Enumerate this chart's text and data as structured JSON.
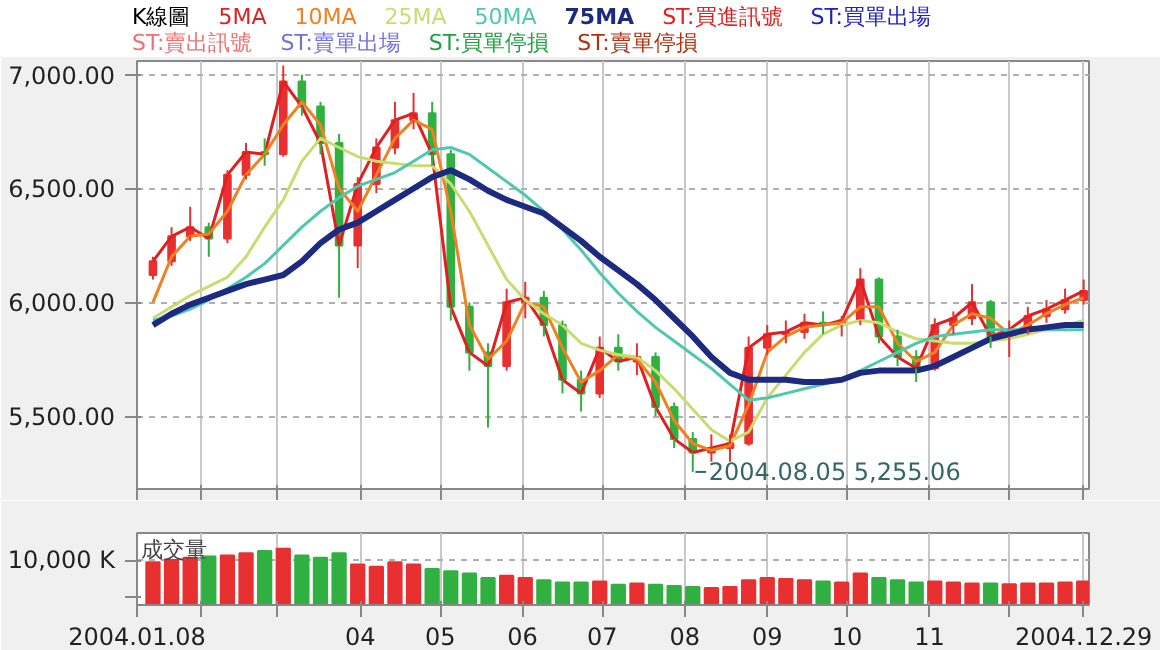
{
  "chart_data": [
    {
      "type": "candlestick",
      "title": "K線圖",
      "legend": "top",
      "grid": true,
      "tick_labels": "y",
      "x": [
        "2004-01-14",
        "2004-01-21",
        "2004-01-28",
        "2004-02-04",
        "2004-02-11",
        "2004-02-18",
        "2004-02-25",
        "2004-03-03",
        "2004-03-10",
        "2004-03-17",
        "2004-03-24",
        "2004-03-31",
        "2004-04-07",
        "2004-04-14",
        "2004-04-21",
        "2004-04-28",
        "2004-05-05",
        "2004-05-12",
        "2004-05-19",
        "2004-05-26",
        "2004-06-02",
        "2004-06-09",
        "2004-06-16",
        "2004-06-23",
        "2004-06-30",
        "2004-07-07",
        "2004-07-14",
        "2004-07-21",
        "2004-07-28",
        "2004-08-04",
        "2004-08-11",
        "2004-08-18",
        "2004-08-25",
        "2004-09-01",
        "2004-09-08",
        "2004-09-15",
        "2004-09-22",
        "2004-09-29",
        "2004-10-06",
        "2004-10-13",
        "2004-10-20",
        "2004-10-27",
        "2004-11-03",
        "2004-11-10",
        "2004-11-17",
        "2004-11-24",
        "2004-12-01",
        "2004-12-08",
        "2004-12-15",
        "2004-12-22",
        "2004-12-29"
      ],
      "ohlc": [
        [
          6120,
          6200,
          6100,
          6180
        ],
        [
          6180,
          6330,
          6160,
          6290
        ],
        [
          6290,
          6420,
          6270,
          6330
        ],
        [
          6330,
          6350,
          6200,
          6280
        ],
        [
          6280,
          6580,
          6260,
          6560
        ],
        [
          6560,
          6700,
          6540,
          6660
        ],
        [
          6660,
          6720,
          6600,
          6650
        ],
        [
          6650,
          7040,
          6640,
          6970
        ],
        [
          6970,
          7000,
          6820,
          6860
        ],
        [
          6860,
          6880,
          6650,
          6700
        ],
        [
          6700,
          6740,
          6020,
          6250
        ],
        [
          6250,
          6550,
          6150,
          6520
        ],
        [
          6520,
          6720,
          6480,
          6680
        ],
        [
          6680,
          6880,
          6650,
          6800
        ],
        [
          6800,
          6920,
          6760,
          6830
        ],
        [
          6830,
          6880,
          6600,
          6650
        ],
        [
          6650,
          6670,
          5920,
          5980
        ],
        [
          5980,
          6000,
          5700,
          5780
        ],
        [
          5780,
          5820,
          5450,
          5720
        ],
        [
          5720,
          6060,
          5700,
          6000
        ],
        [
          6000,
          6090,
          5930,
          6020
        ],
        [
          6020,
          6050,
          5850,
          5900
        ],
        [
          5900,
          5920,
          5600,
          5660
        ],
        [
          5660,
          5700,
          5520,
          5600
        ],
        [
          5600,
          5850,
          5580,
          5800
        ],
        [
          5800,
          5860,
          5700,
          5740
        ],
        [
          5740,
          5820,
          5680,
          5760
        ],
        [
          5760,
          5780,
          5500,
          5540
        ],
        [
          5540,
          5560,
          5360,
          5400
        ],
        [
          5400,
          5430,
          5255.06,
          5340
        ],
        [
          5340,
          5420,
          5300,
          5360
        ],
        [
          5360,
          5420,
          5300,
          5380
        ],
        [
          5380,
          5850,
          5370,
          5800
        ],
        [
          5800,
          5900,
          5770,
          5860
        ],
        [
          5860,
          5920,
          5820,
          5870
        ],
        [
          5870,
          5950,
          5840,
          5910
        ],
        [
          5910,
          5960,
          5860,
          5900
        ],
        [
          5900,
          5940,
          5850,
          5920
        ],
        [
          5920,
          6150,
          5900,
          6100
        ],
        [
          6100,
          6110,
          5820,
          5850
        ],
        [
          5850,
          5880,
          5720,
          5760
        ],
        [
          5760,
          5790,
          5650,
          5710
        ],
        [
          5710,
          5930,
          5700,
          5900
        ],
        [
          5900,
          5960,
          5860,
          5930
        ],
        [
          5930,
          6080,
          5900,
          6000
        ],
        [
          6000,
          6010,
          5800,
          5850
        ],
        [
          5850,
          5920,
          5760,
          5880
        ],
        [
          5880,
          5980,
          5860,
          5940
        ],
        [
          5940,
          6010,
          5910,
          5970
        ],
        [
          5970,
          6060,
          5950,
          6010
        ],
        [
          6010,
          6100,
          5990,
          6050
        ]
      ],
      "colors": [
        "#e83030",
        "#e83030",
        "#e83030",
        "#30b040",
        "#e83030",
        "#e83030",
        "#30b040",
        "#e83030",
        "#30b040",
        "#30b040",
        "#30b040",
        "#e83030",
        "#e83030",
        "#e83030",
        "#e83030",
        "#30b040",
        "#30b040",
        "#30b040",
        "#30b040",
        "#e83030",
        "#e83030",
        "#30b040",
        "#30b040",
        "#30b040",
        "#e83030",
        "#30b040",
        "#e83030",
        "#30b040",
        "#30b040",
        "#30b040",
        "#e83030",
        "#e83030",
        "#e83030",
        "#e83030",
        "#e83030",
        "#e83030",
        "#30b040",
        "#e83030",
        "#e83030",
        "#30b040",
        "#30b040",
        "#30b040",
        "#e83030",
        "#e83030",
        "#e83030",
        "#30b040",
        "#e83030",
        "#e83030",
        "#e83030",
        "#e83030",
        "#e83030"
      ],
      "series": [
        {
          "name": "5MA",
          "type": "line",
          "color": "#e02020",
          "values": [
            6180,
            6290,
            6330,
            6280,
            6560,
            6660,
            6650,
            6970,
            6860,
            6700,
            6250,
            6520,
            6680,
            6800,
            6830,
            6650,
            5980,
            5780,
            5720,
            6000,
            6020,
            5900,
            5660,
            5600,
            5800,
            5740,
            5760,
            5540,
            5400,
            5340,
            5360,
            5380,
            5800,
            5860,
            5870,
            5910,
            5900,
            5920,
            6100,
            5850,
            5760,
            5710,
            5900,
            5930,
            6000,
            5850,
            5880,
            5940,
            5970,
            6010,
            6050
          ]
        },
        {
          "name": "10MA",
          "type": "line",
          "color": "#f08020",
          "values": [
            6000,
            6200,
            6290,
            6300,
            6400,
            6560,
            6650,
            6780,
            6880,
            6780,
            6500,
            6400,
            6560,
            6720,
            6800,
            6760,
            6400,
            5900,
            5750,
            5830,
            6000,
            5980,
            5800,
            5650,
            5700,
            5770,
            5750,
            5650,
            5480,
            5380,
            5350,
            5370,
            5550,
            5780,
            5850,
            5890,
            5900,
            5910,
            5980,
            5980,
            5820,
            5740,
            5780,
            5900,
            5950,
            5930,
            5860,
            5900,
            5950,
            5990,
            6020
          ]
        },
        {
          "name": "25MA",
          "type": "line",
          "color": "#c8dc70",
          "values": [
            5930,
            5980,
            6030,
            6070,
            6110,
            6200,
            6330,
            6450,
            6620,
            6720,
            6680,
            6640,
            6620,
            6610,
            6600,
            6600,
            6520,
            6400,
            6250,
            6100,
            6010,
            5950,
            5900,
            5820,
            5790,
            5770,
            5760,
            5700,
            5620,
            5530,
            5440,
            5390,
            5430,
            5580,
            5680,
            5780,
            5860,
            5900,
            5920,
            5910,
            5870,
            5840,
            5830,
            5820,
            5820,
            5830,
            5840,
            5860,
            5880,
            5900,
            5920
          ]
        },
        {
          "name": "50MA",
          "type": "line",
          "color": "#50c8b0",
          "values": [
            5920,
            5940,
            5970,
            6010,
            6060,
            6110,
            6170,
            6250,
            6330,
            6400,
            6460,
            6510,
            6540,
            6570,
            6620,
            6670,
            6680,
            6650,
            6590,
            6530,
            6470,
            6400,
            6320,
            6230,
            6130,
            6040,
            5960,
            5890,
            5830,
            5770,
            5710,
            5640,
            5570,
            5580,
            5600,
            5620,
            5640,
            5660,
            5700,
            5740,
            5780,
            5820,
            5850,
            5860,
            5870,
            5880,
            5880,
            5880,
            5880,
            5880,
            5880
          ]
        },
        {
          "name": "75MA",
          "type": "line",
          "color": "#1c2a80",
          "values": [
            5900,
            5950,
            5990,
            6020,
            6050,
            6080,
            6100,
            6120,
            6180,
            6260,
            6320,
            6350,
            6400,
            6450,
            6500,
            6550,
            6580,
            6540,
            6490,
            6450,
            6420,
            6390,
            6330,
            6270,
            6200,
            6140,
            6080,
            6010,
            5930,
            5850,
            5760,
            5690,
            5660,
            5660,
            5660,
            5650,
            5650,
            5660,
            5690,
            5700,
            5700,
            5700,
            5720,
            5760,
            5800,
            5840,
            5860,
            5880,
            5890,
            5900,
            5900
          ]
        }
      ],
      "annotations": [
        "ST:買進訊號",
        "ST:買單出場",
        "ST:賣出訊號",
        "ST:賣單出場",
        "ST:買單停損",
        "ST:賣單停損",
        {
          "text": "2004.08.05  5,255.06",
          "x": "2004-08-05",
          "y": 5255.06
        }
      ],
      "xlim": [
        "2004-01-08",
        "2004-12-31"
      ],
      "xticks": [
        {
          "value": "2004-01-08",
          "label": null
        },
        {
          "value": "2004-02-01",
          "label": null
        },
        {
          "value": "2004-03-01",
          "label": null
        },
        {
          "value": "2004-04-01",
          "label": null
        },
        {
          "value": "2004-05-01",
          "label": null
        },
        {
          "value": "2004-06-01",
          "label": null
        },
        {
          "value": "2004-07-01",
          "label": null
        },
        {
          "value": "2004-08-01",
          "label": null
        },
        {
          "value": "2004-09-01",
          "label": null
        },
        {
          "value": "2004-10-01",
          "label": null
        },
        {
          "value": "2004-11-01",
          "label": null
        },
        {
          "value": "2004-12-01",
          "label": null
        },
        {
          "value": "2004-12-29",
          "label": null
        }
      ],
      "ylim": [
        5180,
        7060
      ],
      "yticks": [
        {
          "value": 5500,
          "label": "5,500.00"
        },
        {
          "value": 6000,
          "label": "6,000.00"
        },
        {
          "value": 6500,
          "label": "6,500.00"
        },
        {
          "value": 7000,
          "label": "7,000.00"
        }
      ]
    },
    {
      "type": "bar",
      "title": "成交量",
      "grid": "x",
      "ref_lines": [
        {
          "axis": "y",
          "value": 10000,
          "label": null
        }
      ],
      "x": [
        "2004-01-14",
        "2004-01-21",
        "2004-01-28",
        "2004-02-04",
        "2004-02-11",
        "2004-02-18",
        "2004-02-25",
        "2004-03-03",
        "2004-03-10",
        "2004-03-17",
        "2004-03-24",
        "2004-03-31",
        "2004-04-07",
        "2004-04-14",
        "2004-04-21",
        "2004-04-28",
        "2004-05-05",
        "2004-05-12",
        "2004-05-19",
        "2004-05-26",
        "2004-06-02",
        "2004-06-09",
        "2004-06-16",
        "2004-06-23",
        "2004-06-30",
        "2004-07-07",
        "2004-07-14",
        "2004-07-21",
        "2004-07-28",
        "2004-08-04",
        "2004-08-11",
        "2004-08-18",
        "2004-08-25",
        "2004-09-01",
        "2004-09-08",
        "2004-09-15",
        "2004-09-22",
        "2004-09-29",
        "2004-10-06",
        "2004-10-13",
        "2004-10-20",
        "2004-10-27",
        "2004-11-03",
        "2004-11-10",
        "2004-11-17",
        "2004-11-24",
        "2004-12-01",
        "2004-12-08",
        "2004-12-15",
        "2004-12-22",
        "2004-12-29"
      ],
      "values": [
        9500,
        10000,
        10500,
        10800,
        11000,
        11500,
        12000,
        12500,
        11000,
        10500,
        11500,
        9000,
        8500,
        9500,
        9000,
        8000,
        7500,
        7000,
        6000,
        6500,
        6000,
        5500,
        5000,
        5000,
        5200,
        4500,
        4800,
        4500,
        4200,
        4000,
        3800,
        4000,
        5500,
        6000,
        5800,
        5500,
        5200,
        5000,
        7000,
        6000,
        5500,
        5000,
        5200,
        5000,
        4800,
        4800,
        4600,
        4800,
        4800,
        5000,
        5200
      ],
      "colors": [
        "#e83030",
        "#e83030",
        "#e83030",
        "#30b040",
        "#e83030",
        "#e83030",
        "#30b040",
        "#e83030",
        "#30b040",
        "#30b040",
        "#30b040",
        "#e83030",
        "#e83030",
        "#e83030",
        "#e83030",
        "#30b040",
        "#30b040",
        "#30b040",
        "#30b040",
        "#e83030",
        "#e83030",
        "#30b040",
        "#30b040",
        "#30b040",
        "#e83030",
        "#30b040",
        "#e83030",
        "#30b040",
        "#30b040",
        "#30b040",
        "#e83030",
        "#e83030",
        "#e83030",
        "#e83030",
        "#e83030",
        "#e83030",
        "#30b040",
        "#e83030",
        "#e83030",
        "#30b040",
        "#30b040",
        "#30b040",
        "#e83030",
        "#e83030",
        "#e83030",
        "#30b040",
        "#e83030",
        "#e83030",
        "#e83030",
        "#e83030",
        "#e83030"
      ],
      "xlim": [
        "2004-01-08",
        "2004-12-31"
      ],
      "xticks": [
        {
          "value": "2004-01-08",
          "label": "2004.01.08"
        },
        {
          "value": "2004-02-01",
          "label": null
        },
        {
          "value": "2004-03-01",
          "label": null
        },
        {
          "value": "2004-04-01",
          "label": "04"
        },
        {
          "value": "2004-05-01",
          "label": "05"
        },
        {
          "value": "2004-06-01",
          "label": "06"
        },
        {
          "value": "2004-07-01",
          "label": "07"
        },
        {
          "value": "2004-08-01",
          "label": "08"
        },
        {
          "value": "2004-09-01",
          "label": "09"
        },
        {
          "value": "2004-10-01",
          "label": "10"
        },
        {
          "value": "2004-11-01",
          "label": "11"
        },
        {
          "value": "2004-12-01",
          "label": null
        },
        {
          "value": "2004-12-29",
          "label": "2004.12.29"
        }
      ],
      "ylim": [
        0,
        16000
      ],
      "yticks": [
        {
          "value": 2000,
          "label": null
        },
        {
          "value": 10000,
          "label": "10,000 K"
        }
      ]
    }
  ]
}
